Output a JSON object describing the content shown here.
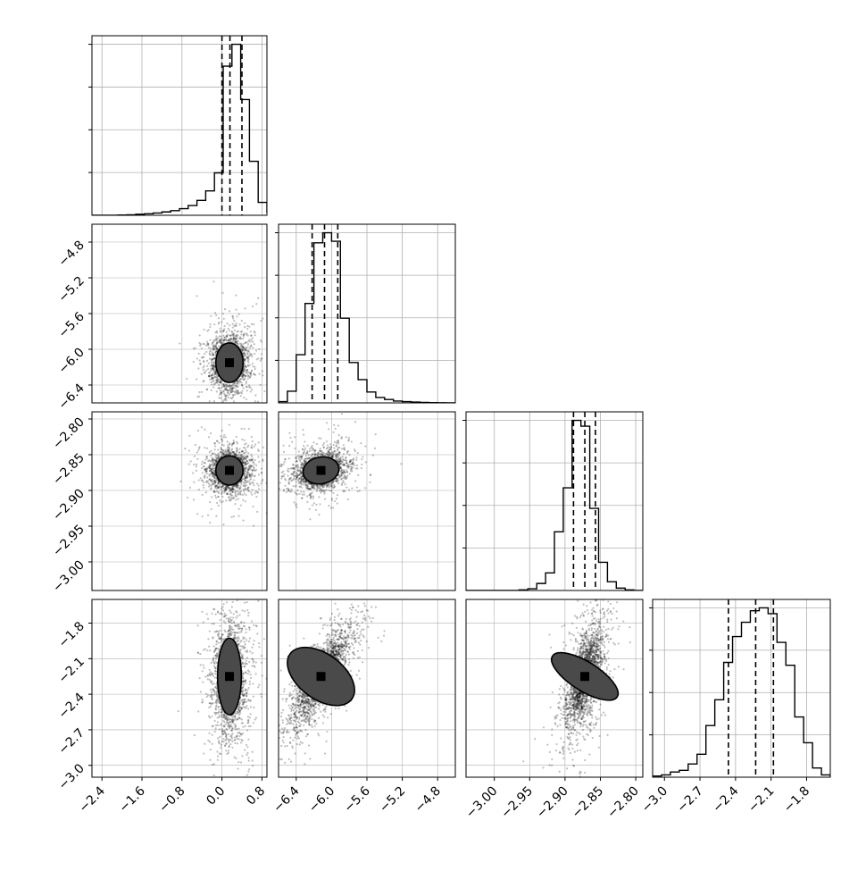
{
  "chart_data": {
    "type": "corner",
    "parameters": [
      {
        "range": [
          -2.6,
          0.9
        ],
        "ticks": [
          -2.4,
          -1.6,
          -0.8,
          0.0,
          0.8
        ],
        "tick_labels": [
          "−2.4",
          "−1.6",
          "−0.8",
          "0.0",
          "0.8"
        ]
      },
      {
        "range": [
          -6.6,
          -4.6
        ],
        "ticks": [
          -6.4,
          -6.0,
          -5.6,
          -5.2,
          -4.8
        ],
        "tick_labels": [
          "−6.4",
          "−6.0",
          "−5.6",
          "−5.2",
          "−4.8"
        ]
      },
      {
        "range": [
          -3.04,
          -2.79
        ],
        "ticks": [
          -3.0,
          -2.95,
          -2.9,
          -2.85,
          -2.8
        ],
        "tick_labels": [
          "−3.00",
          "−2.95",
          "−2.90",
          "−2.85",
          "−2.80"
        ]
      },
      {
        "range": [
          -3.1,
          -1.6
        ],
        "ticks": [
          -3.0,
          -2.7,
          -2.4,
          -2.1,
          -1.8
        ],
        "tick_labels": [
          "−3.0",
          "−2.7",
          "−2.4",
          "−2.1",
          "−1.8"
        ]
      }
    ],
    "histograms": [
      {
        "bins": [
          -2.6,
          -2.425,
          -2.25,
          -2.075,
          -1.9,
          -1.725,
          -1.55,
          -1.375,
          -1.2,
          -1.025,
          -0.85,
          -0.675,
          -0.5,
          -0.325,
          -0.15,
          0.025,
          0.2,
          0.375,
          0.55,
          0.725,
          0.9
        ],
        "counts": [
          0,
          0,
          0,
          1,
          2,
          4,
          6,
          9,
          13,
          18,
          26,
          38,
          58,
          95,
          165,
          580,
          665,
          450,
          210,
          50,
          10
        ],
        "quantiles": [
          0.0,
          0.16,
          0.4
        ]
      },
      {
        "bins": [
          -6.6,
          -6.5,
          -6.4,
          -6.3,
          -6.2,
          -6.1,
          -6.0,
          -5.9,
          -5.8,
          -5.7,
          -5.6,
          -5.5,
          -5.4,
          -5.3,
          -5.2,
          -5.1,
          -5.0,
          -4.9,
          -4.8,
          -4.7,
          -4.6
        ],
        "counts": [
          8,
          75,
          310,
          640,
          1030,
          1095,
          1040,
          545,
          260,
          150,
          70,
          35,
          22,
          12,
          8,
          5,
          3,
          2,
          1,
          0
        ],
        "quantiles": [
          -6.22,
          -6.08,
          -5.93
        ]
      },
      {
        "bins": [
          -3.04,
          -3.0275,
          -3.015,
          -3.0025,
          -2.99,
          -2.9775,
          -2.965,
          -2.9525,
          -2.94,
          -2.9275,
          -2.915,
          -2.9025,
          -2.89,
          -2.8775,
          -2.865,
          -2.8525,
          -2.84,
          -2.8275,
          -2.815,
          -2.8025,
          -2.79
        ],
        "counts": [
          0,
          0,
          0,
          0,
          0,
          0,
          1,
          3,
          12,
          30,
          100,
          175,
          290,
          280,
          140,
          48,
          15,
          4,
          1,
          0
        ],
        "quantiles": [
          -2.888,
          -2.872,
          -2.857
        ]
      },
      {
        "bins": [
          -3.1,
          -3.025,
          -2.95,
          -2.875,
          -2.8,
          -2.725,
          -2.65,
          -2.575,
          -2.5,
          -2.425,
          -2.35,
          -2.275,
          -2.2,
          -2.125,
          -2.05,
          -1.975,
          -1.9,
          -1.825,
          -1.75,
          -1.675,
          -1.6
        ],
        "counts": [
          2,
          4,
          9,
          12,
          23,
          40,
          90,
          135,
          200,
          245,
          270,
          290,
          295,
          285,
          235,
          195,
          105,
          60,
          16,
          4
        ],
        "quantiles": [
          -2.46,
          -2.23,
          -2.08
        ]
      }
    ],
    "pairs": [
      {
        "row": 1,
        "col": 0,
        "center": [
          0.15,
          -6.15
        ],
        "sd": [
          0.16,
          0.13
        ],
        "corr": 0.0,
        "cloud": "heavy left tail in x and upward tail near x=0.1"
      },
      {
        "row": 2,
        "col": 0,
        "center": [
          0.15,
          -2.872
        ],
        "sd": [
          0.16,
          0.012
        ],
        "corr": 0.0,
        "cloud": "elongated in x"
      },
      {
        "row": 2,
        "col": 1,
        "center": [
          -6.12,
          -2.872
        ],
        "sd": [
          0.12,
          0.011
        ],
        "corr": 0.25,
        "cloud": "tail toward larger x"
      },
      {
        "row": 3,
        "col": 0,
        "center": [
          0.15,
          -2.25
        ],
        "sd": [
          0.14,
          0.19
        ],
        "corr": 0.0,
        "cloud": "broad in x"
      },
      {
        "row": 3,
        "col": 1,
        "center": [
          -6.12,
          -2.25
        ],
        "sd": [
          0.15,
          0.19
        ],
        "corr": 0.8,
        "cloud": "diagonal band"
      },
      {
        "row": 3,
        "col": 2,
        "center": [
          -2.872,
          -2.25
        ],
        "sd": [
          0.012,
          0.19
        ],
        "corr": 0.6,
        "cloud": "diagonal ellipse"
      }
    ],
    "contour_levels": [
      0.5,
      1.0,
      1.5,
      2.0
    ],
    "colors": {
      "line": "#000000",
      "grid": "#b0b0b0",
      "points": "#000000",
      "fill": "#ffffff"
    },
    "title": "",
    "legend": "none",
    "grid": true
  }
}
